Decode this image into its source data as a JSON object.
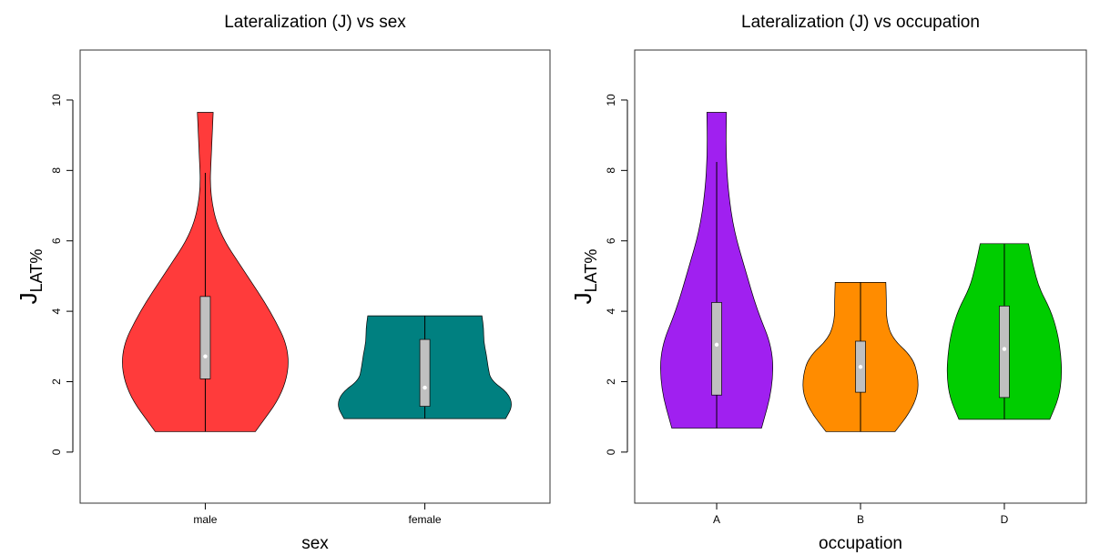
{
  "chart_data": [
    {
      "type": "violin",
      "title": "Lateralization (J) vs sex",
      "xlabel": "sex",
      "ylabel": "J",
      "ylabel_sub": "LAT%",
      "categories": [
        "male",
        "female"
      ],
      "ylim": [
        -1.45,
        11.42
      ],
      "yticks": [
        0,
        2,
        4,
        6,
        8,
        10
      ],
      "violins": [
        {
          "color": "#ff3b3b",
          "min": 0.58,
          "max": 9.65,
          "lower_whisker": 0.58,
          "upper_whisker": 7.93,
          "q1": 2.08,
          "median": 2.72,
          "q3": 4.42,
          "density": [
            0.57,
            0.9,
            0.97,
            0.75,
            0.45,
            0.15,
            0.05,
            0.07,
            0.09
          ]
        },
        {
          "color": "#008080",
          "min": 0.95,
          "max": 3.87,
          "lower_whisker": 0.95,
          "upper_whisker": 3.87,
          "q1": 1.3,
          "median": 1.83,
          "q3": 3.2,
          "density": [
            0.92,
            1.0,
            0.95,
            0.75,
            0.72,
            0.7,
            0.67,
            0.67,
            0.65
          ]
        }
      ]
    },
    {
      "type": "violin",
      "title": "Lateralization (J) vs occupation",
      "xlabel": "occupation",
      "ylabel": "J",
      "ylabel_sub": "LAT%",
      "categories": [
        "A",
        "B",
        "D"
      ],
      "ylim": [
        -1.45,
        11.42
      ],
      "yticks": [
        0,
        2,
        4,
        6,
        8,
        10
      ],
      "violins": [
        {
          "color": "#a020f0",
          "min": 0.68,
          "max": 9.65,
          "lower_whisker": 0.68,
          "upper_whisker": 8.24,
          "q1": 1.62,
          "median": 3.05,
          "q3": 4.25,
          "density": [
            0.78,
            0.97,
            0.98,
            0.7,
            0.5,
            0.3,
            0.2,
            0.16,
            0.17
          ]
        },
        {
          "color": "#ff8c00",
          "min": 0.58,
          "max": 4.82,
          "lower_whisker": 0.58,
          "upper_whisker": 4.82,
          "q1": 1.7,
          "median": 2.42,
          "q3": 3.15,
          "density": [
            0.6,
            0.85,
            1.0,
            1.0,
            0.9,
            0.55,
            0.45,
            0.45,
            0.44
          ]
        },
        {
          "color": "#00cd00",
          "min": 0.93,
          "max": 5.92,
          "lower_whisker": 0.93,
          "upper_whisker": 5.92,
          "q1": 1.55,
          "median": 2.93,
          "q3": 4.15,
          "density": [
            0.79,
            0.95,
            1.0,
            0.98,
            0.92,
            0.8,
            0.6,
            0.5,
            0.42
          ]
        }
      ]
    }
  ]
}
